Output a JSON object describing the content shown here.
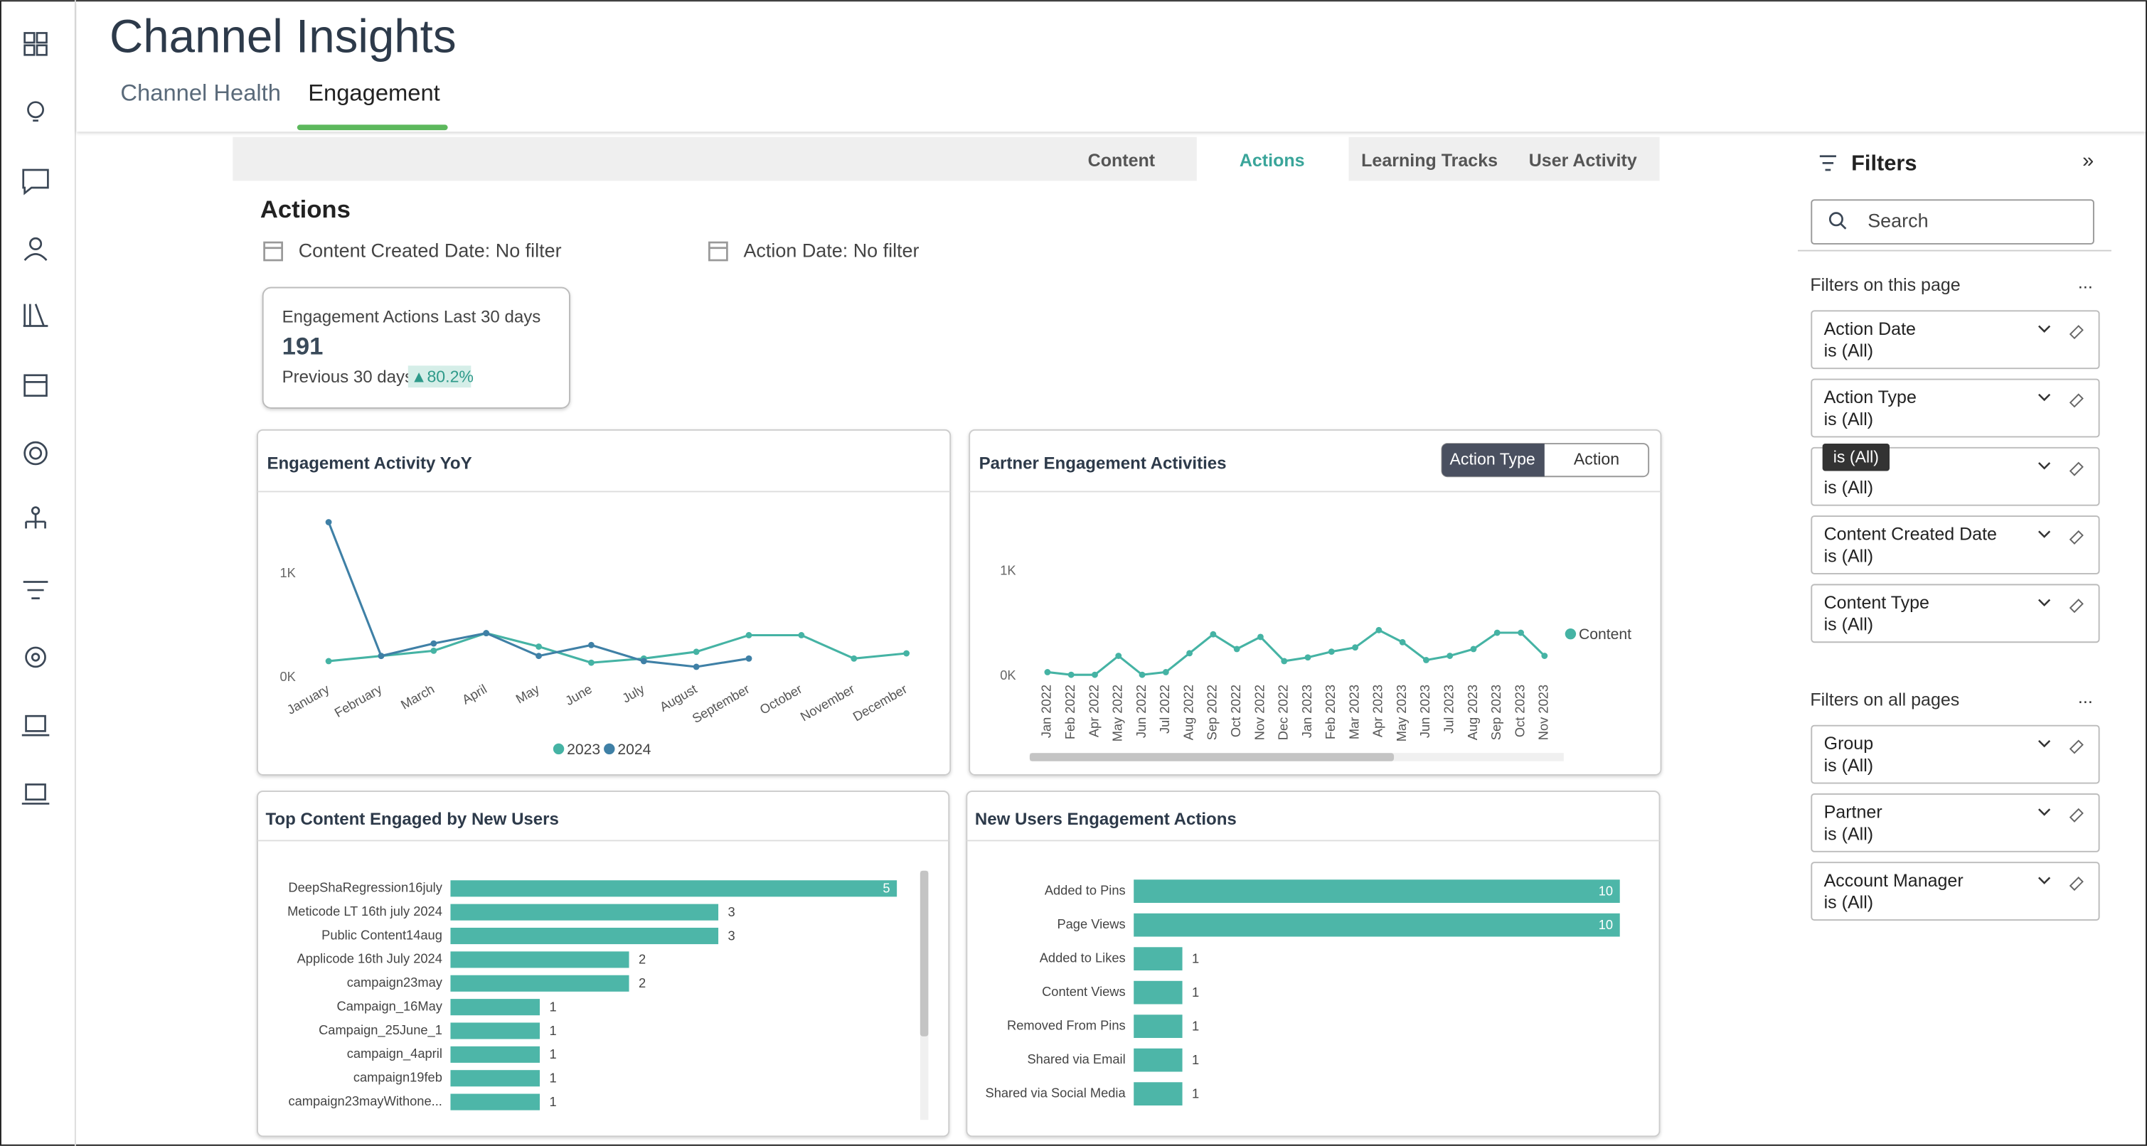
{
  "header": {
    "title": "Channel Insights",
    "tabs": [
      "Channel Health",
      "Engagement"
    ]
  },
  "subtabs": [
    "Content",
    "Actions",
    "Learning Tracks",
    "User Activity"
  ],
  "section": {
    "title": "Actions",
    "date_filters": [
      "Content Created Date: No filter",
      "Action Date: No filter"
    ]
  },
  "kpi": {
    "label": "Engagement Actions Last 30 days",
    "value": 191,
    "comparison_label": "Previous 30 days",
    "change_label": "▲80.2%"
  },
  "toggle": [
    "Action Type",
    "Action"
  ],
  "charts": [
    {
      "type": "line",
      "title": "Engagement Activity YoY",
      "categories": [
        "January",
        "February",
        "March",
        "April",
        "May",
        "June",
        "July",
        "August",
        "September",
        "October",
        "November",
        "December"
      ],
      "series": [
        {
          "name": "2023",
          "color": "#45b3a4",
          "values": [
            160,
            210,
            260,
            430,
            300,
            145,
            185,
            250,
            410,
            410,
            185,
            235
          ]
        },
        {
          "name": "2024",
          "color": "#3f80a6",
          "values": [
            1500,
            210,
            330,
            430,
            210,
            315,
            160,
            105,
            185,
            null,
            null,
            null
          ]
        }
      ],
      "ylim": [
        0,
        1650
      ],
      "yticks": [
        {
          "value": 0,
          "label": "0K"
        },
        {
          "value": 1000,
          "label": "1K"
        }
      ],
      "legend": "bottom"
    },
    {
      "type": "line",
      "title": "Partner Engagement Activities",
      "categories": [
        "Jan 2022",
        "Feb 2022",
        "Apr 2022",
        "May 2022",
        "Jun 2022",
        "Jul 2022",
        "Aug 2022",
        "Sep 2022",
        "Oct 2022",
        "Nov 2022",
        "Dec 2022",
        "Jan 2023",
        "Feb 2023",
        "Mar 2023",
        "Apr 2023",
        "May 2023",
        "Jun 2023",
        "Jul 2023",
        "Aug 2023",
        "Sep 2023",
        "Oct 2023",
        "Nov 2023"
      ],
      "series": [
        {
          "name": "Content",
          "color": "#45b3a4",
          "values": [
            40,
            15,
            15,
            195,
            15,
            40,
            220,
            400,
            260,
            375,
            145,
            180,
            235,
            275,
            440,
            325,
            155,
            195,
            260,
            415,
            415,
            195
          ]
        }
      ],
      "ylim": [
        0,
        1550
      ],
      "yticks": [
        {
          "value": 0,
          "label": "0K"
        },
        {
          "value": 1000,
          "label": "1K"
        }
      ],
      "legend": "right"
    },
    {
      "type": "barh",
      "title": "Top Content Engaged by New Users",
      "color": "#4db6a8",
      "categories": [
        "DeepShaRegression16july",
        "Meticode LT 16th july 2024",
        "Public Content14aug",
        "Applicode 16th July 2024",
        "campaign23may",
        "Campaign_16May",
        "Campaign_25June_1",
        "campaign_4april",
        "campaign19feb",
        "campaign23mayWithone..."
      ],
      "values": [
        5,
        3,
        3,
        2,
        2,
        1,
        1,
        1,
        1,
        1
      ]
    },
    {
      "type": "barh",
      "title": "New Users Engagement Actions",
      "color": "#4db6a8",
      "categories": [
        "Added to Pins",
        "Page Views",
        "Added to Likes",
        "Content Views",
        "Removed From Pins",
        "Shared via Email",
        "Shared via Social Media"
      ],
      "values": [
        10,
        10,
        1,
        1,
        1,
        1,
        1
      ]
    }
  ],
  "filters": {
    "title": "Filters",
    "search_placeholder": "Search",
    "page_section": {
      "title": "Filters on this page",
      "more": "...",
      "items": [
        {
          "name": "Action Date",
          "state": "is (All)"
        },
        {
          "name": "Action Type",
          "state": "is (All)"
        },
        {
          "state": "is (All)"
        },
        {
          "name": "Content Created Date",
          "state": "is (All)"
        },
        {
          "name": "Content Type",
          "state": "is (All)"
        }
      ]
    },
    "all_section": {
      "title": "Filters on all pages",
      "more": "...",
      "items": [
        {
          "name": "Group",
          "state": "is (All)"
        },
        {
          "name": "Partner",
          "state": "is (All)"
        },
        {
          "name": "Account Manager",
          "state": "is (All)"
        }
      ]
    },
    "tooltip": "is (All)"
  }
}
